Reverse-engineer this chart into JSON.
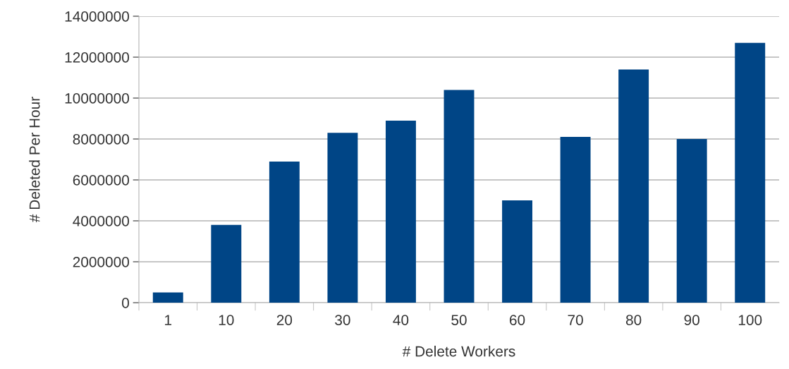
{
  "chart_data": {
    "type": "bar",
    "xlabel": "# Delete Workers",
    "ylabel": "# Deleted Per Hour",
    "categories": [
      "1",
      "10",
      "20",
      "30",
      "40",
      "50",
      "60",
      "70",
      "80",
      "90",
      "100"
    ],
    "values": [
      500000,
      3800000,
      6900000,
      8300000,
      8900000,
      10400000,
      5000000,
      8100000,
      11400000,
      8000000,
      12700000
    ],
    "color": "#004586",
    "ylim": [
      0,
      14000000
    ],
    "yticks": [
      0,
      2000000,
      4000000,
      6000000,
      8000000,
      10000000,
      12000000,
      14000000
    ],
    "grid": "y",
    "legend": false
  }
}
